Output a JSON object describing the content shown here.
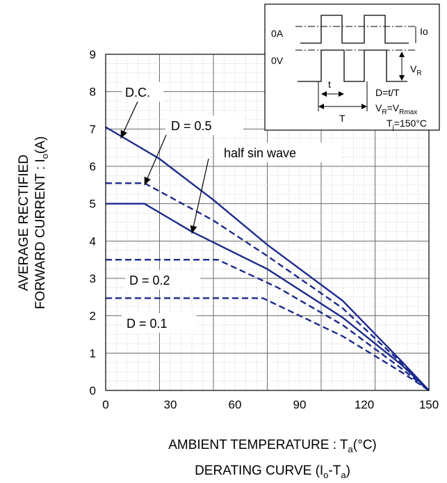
{
  "chart_data": {
    "type": "line",
    "title": "DERATING CURVE (I",
    "title_sub": "o",
    "title_tail": "-T",
    "title_sub2": "a",
    "title_end": ")",
    "xlabel": "AMBIENT TEMPERATURE : T",
    "xlabel_sub": "a",
    "xlabel_unit": "(°C)",
    "ylabel_line1": "AVERAGE RECTIFIED",
    "ylabel_line2": "FORWARD CURRENT : I",
    "ylabel_sub": "o",
    "ylabel_unit": "(A)",
    "xlim": [
      0,
      150
    ],
    "ylim": [
      0,
      9
    ],
    "xticks": [
      "0",
      "30",
      "60",
      "90",
      "120",
      "150"
    ],
    "yticks": [
      "0",
      "1",
      "2",
      "3",
      "4",
      "5",
      "6",
      "7",
      "8",
      "9"
    ],
    "grid": true,
    "series": [
      {
        "name": "D.C.",
        "style": "solid",
        "points": [
          [
            0,
            7.05
          ],
          [
            25,
            6.2
          ],
          [
            50,
            5.1
          ],
          [
            75,
            3.9
          ],
          [
            110,
            2.4
          ],
          [
            137,
            0.8
          ],
          [
            150,
            0
          ]
        ]
      },
      {
        "name": "D = 0.5",
        "style": "dashed",
        "points": [
          [
            0,
            5.55
          ],
          [
            18,
            5.55
          ],
          [
            50,
            4.55
          ],
          [
            75,
            3.6
          ],
          [
            110,
            2.2
          ],
          [
            137,
            0.75
          ],
          [
            150,
            0
          ]
        ]
      },
      {
        "name": "half sin wave",
        "style": "solid",
        "points": [
          [
            0,
            5.0
          ],
          [
            18,
            5.0
          ],
          [
            40,
            4.25
          ],
          [
            75,
            3.25
          ],
          [
            110,
            1.95
          ],
          [
            137,
            0.7
          ],
          [
            150,
            0
          ]
        ]
      },
      {
        "name": "D = 0.2",
        "style": "dashed",
        "points": [
          [
            0,
            3.5
          ],
          [
            52,
            3.5
          ],
          [
            80,
            2.75
          ],
          [
            110,
            1.75
          ],
          [
            137,
            0.6
          ],
          [
            150,
            0
          ]
        ]
      },
      {
        "name": "D = 0.1",
        "style": "dashed",
        "points": [
          [
            0,
            2.47
          ],
          [
            73,
            2.47
          ],
          [
            110,
            1.45
          ],
          [
            137,
            0.5
          ],
          [
            150,
            0
          ]
        ]
      }
    ],
    "annotations": [
      {
        "text": "D.C.",
        "target": [
          7,
          6.75
        ]
      },
      {
        "text": "D = 0.5",
        "target": [
          18,
          5.5
        ]
      },
      {
        "text": "half sin wave",
        "target": [
          40,
          4.2
        ]
      },
      {
        "text": "D = 0.2"
      },
      {
        "text": "D = 0.1"
      }
    ],
    "color": "#1c2a8c",
    "inset": {
      "zero_amp": "0A",
      "zero_volt": "0V",
      "io": "Io",
      "vr": "V",
      "vr_sub": "R",
      "t": "t",
      "T": "T",
      "duty": "D=t/T",
      "vr_eq": "V",
      "vr_eq_sub": "R",
      "vr_eq_mid": "=V",
      "vr_eq_sub2": "Rmax",
      "tj": "T",
      "tj_sub": "j",
      "tj_val": "=150°C"
    }
  }
}
